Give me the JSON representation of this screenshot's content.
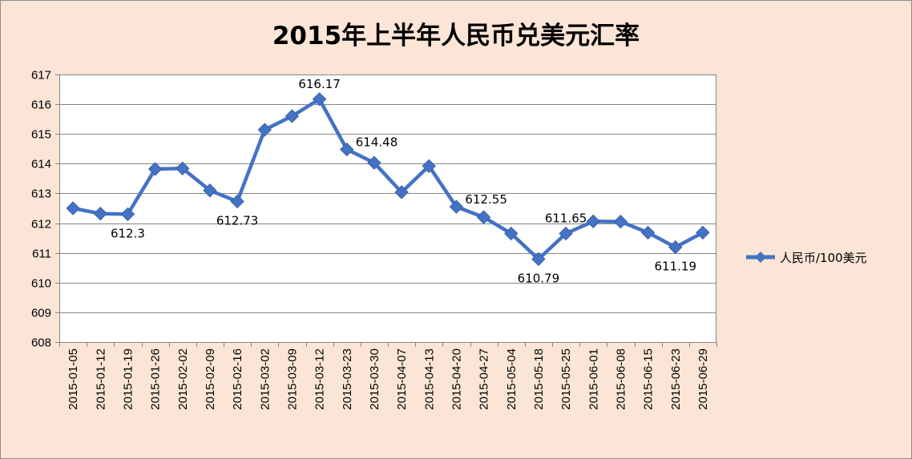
{
  "chart_data": {
    "type": "line",
    "title": "2015年上半年人民币兑美元汇率",
    "categories": [
      "2015-01-05",
      "2015-01-12",
      "2015-01-19",
      "2015-01-26",
      "2015-02-02",
      "2015-02-09",
      "2015-02-16",
      "2015-03-02",
      "2015-03-09",
      "2015-03-12",
      "2015-03-23",
      "2015-03-30",
      "2015-04-07",
      "2015-04-13",
      "2015-04-20",
      "2015-04-27",
      "2015-05-04",
      "2015-05-18",
      "2015-05-25",
      "2015-06-01",
      "2015-06-08",
      "2015-06-15",
      "2015-06-23",
      "2015-06-29"
    ],
    "series": [
      {
        "name": "人民币/100美元",
        "values": [
          612.5,
          612.32,
          612.3,
          613.82,
          613.84,
          613.1,
          612.73,
          615.14,
          615.6,
          616.17,
          614.48,
          614.03,
          613.04,
          613.92,
          612.55,
          612.2,
          611.65,
          610.79,
          611.65,
          612.06,
          612.05,
          611.68,
          611.19,
          611.68
        ]
      }
    ],
    "data_labels": [
      {
        "index": 2,
        "text": "612.3",
        "position": "below"
      },
      {
        "index": 6,
        "text": "612.73",
        "position": "below"
      },
      {
        "index": 9,
        "text": "616.17",
        "position": "above"
      },
      {
        "index": 10,
        "text": "614.48",
        "position": "right"
      },
      {
        "index": 14,
        "text": "612.55",
        "position": "right"
      },
      {
        "index": 17,
        "text": "610.79",
        "position": "below"
      },
      {
        "index": 18,
        "text": "611.65",
        "position": "above"
      },
      {
        "index": 22,
        "text": "611.19",
        "position": "below"
      }
    ],
    "y_ticks": [
      "608",
      "609",
      "610",
      "611",
      "612",
      "613",
      "614",
      "615",
      "616",
      "617"
    ],
    "ylim": [
      608,
      617
    ],
    "xlabel": "",
    "ylabel": "",
    "grid": true,
    "legend_position": "right",
    "colors": {
      "series": "#4472C4",
      "background": "#FBE5D6",
      "plot_background": "#FFFFFF",
      "gridline": "#868686"
    }
  }
}
